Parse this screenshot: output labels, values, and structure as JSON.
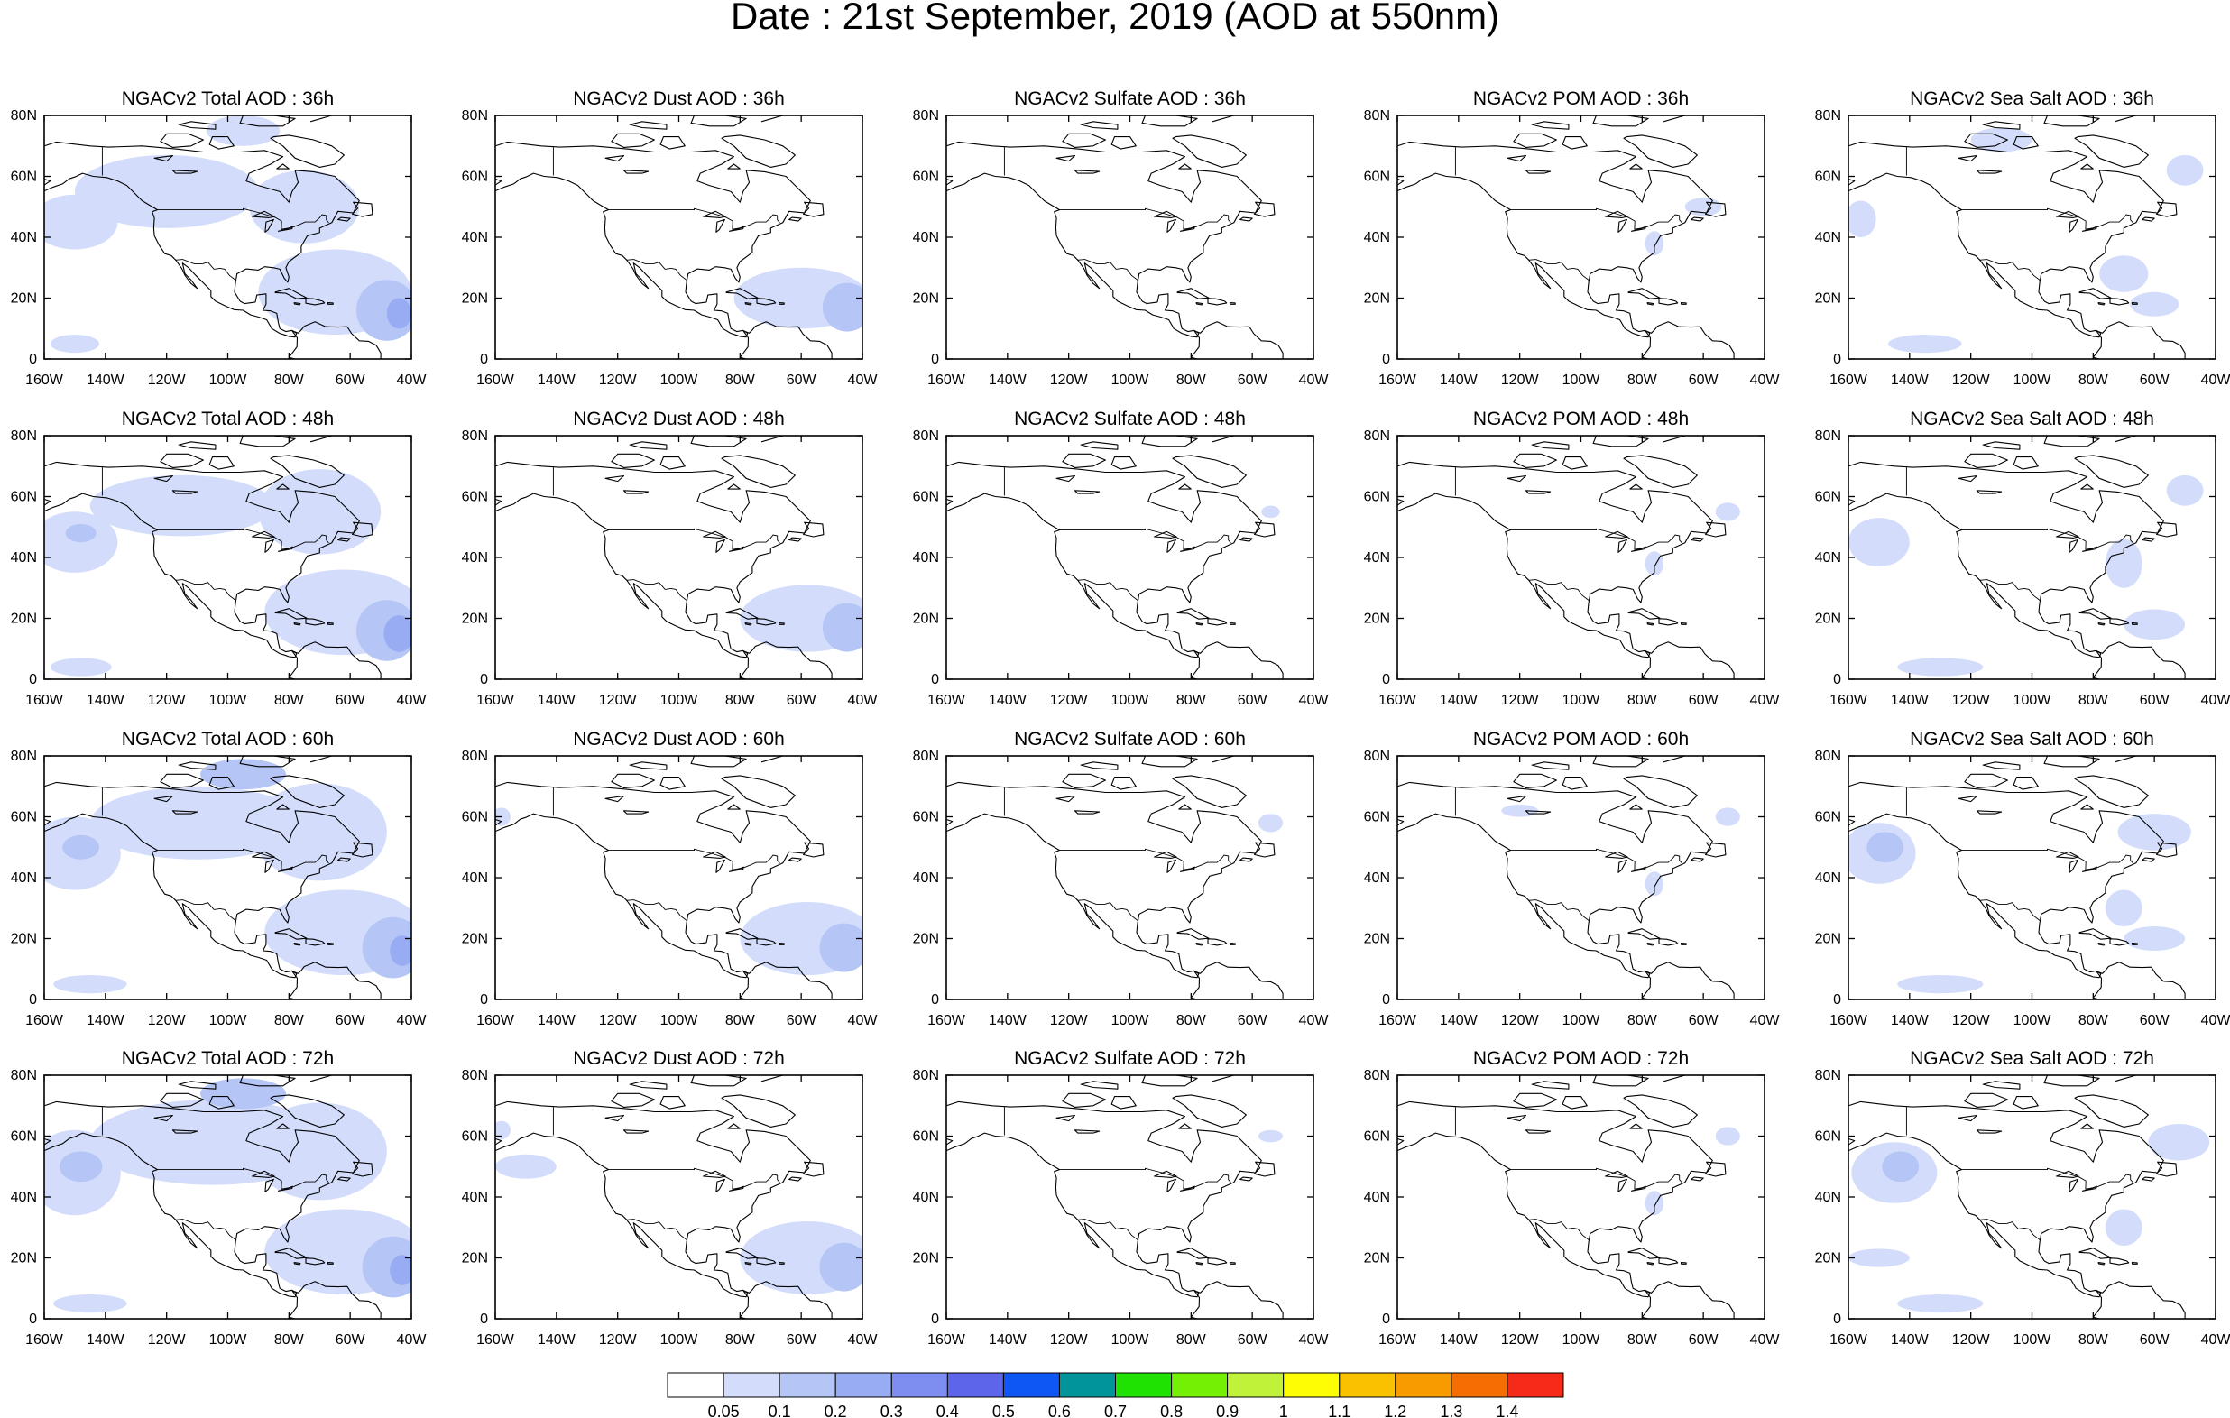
{
  "figure": {
    "title": "Date : 21st September, 2019 (AOD at 550nm)"
  },
  "panel_grid": {
    "forecast_hours": [
      "36h",
      "48h",
      "60h",
      "72h"
    ],
    "species": [
      "Total",
      "Dust",
      "Sulfate",
      "POM",
      "Sea Salt"
    ],
    "titles": [
      [
        "NGACv2 Total AOD : 36h",
        "NGACv2 Dust AOD : 36h",
        "NGACv2 Sulfate AOD : 36h",
        "NGACv2 POM AOD : 36h",
        "NGACv2 Sea Salt AOD : 36h"
      ],
      [
        "NGACv2 Total AOD : 48h",
        "NGACv2 Dust AOD : 48h",
        "NGACv2 Sulfate AOD : 48h",
        "NGACv2 POM AOD : 48h",
        "NGACv2 Sea Salt AOD : 48h"
      ],
      [
        "NGACv2 Total AOD : 60h",
        "NGACv2 Dust AOD : 60h",
        "NGACv2 Sulfate AOD : 60h",
        "NGACv2 POM AOD : 60h",
        "NGACv2 Sea Salt AOD : 60h"
      ],
      [
        "NGACv2 Total AOD : 72h",
        "NGACv2 Dust AOD : 72h",
        "NGACv2 Sulfate AOD : 72h",
        "NGACv2 POM AOD : 72h",
        "NGACv2 Sea Salt  AOD : 72h"
      ]
    ]
  },
  "map_axes": {
    "lon_range": [
      -160,
      -40
    ],
    "lat_range": [
      0,
      80
    ],
    "lon_ticks": [
      "160W",
      "140W",
      "120W",
      "100W",
      "80W",
      "60W",
      "40W"
    ],
    "lat_ticks": [
      "0",
      "20N",
      "40N",
      "60N",
      "80N"
    ]
  },
  "colorbar": {
    "labels": [
      "0.05",
      "0.1",
      "0.2",
      "0.3",
      "0.4",
      "0.5",
      "0.6",
      "0.7",
      "0.8",
      "0.9",
      "1",
      "1.1",
      "1.2",
      "1.3",
      "1.4"
    ],
    "colors": [
      "#ffffff",
      "#d3ddfb",
      "#b4c5f6",
      "#98acf3",
      "#7e8ef0",
      "#5d66ea",
      "#0f57f4",
      "#01949b",
      "#1fe102",
      "#73f003",
      "#c0f23a",
      "#fefd03",
      "#fac101",
      "#f89b01",
      "#f46e01",
      "#f52a18"
    ]
  },
  "palette": {
    "aod_light": "#d3ddfb",
    "aod_medium": "#b4c5f6",
    "aod_strong": "#98acf3",
    "aod_peak": "#7e8ef0"
  },
  "blob_levels": {
    "total": [
      [
        {
          "lon": -150,
          "lat": 45,
          "rx": 14,
          "ry": 9,
          "lv": 1
        },
        {
          "lon": -120,
          "lat": 55,
          "rx": 30,
          "ry": 12,
          "lv": 1
        },
        {
          "lon": -65,
          "lat": 22,
          "rx": 25,
          "ry": 14,
          "lv": 1
        },
        {
          "lon": -48,
          "lat": 16,
          "rx": 10,
          "ry": 10,
          "lv": 2
        },
        {
          "lon": -44,
          "lat": 15,
          "rx": 4,
          "ry": 5,
          "lv": 3
        },
        {
          "lon": -75,
          "lat": 50,
          "rx": 18,
          "ry": 12,
          "lv": 1
        },
        {
          "lon": -150,
          "lat": 5,
          "rx": 8,
          "ry": 3,
          "lv": 1
        },
        {
          "lon": -95,
          "lat": 75,
          "rx": 12,
          "ry": 5,
          "lv": 1
        }
      ],
      [
        {
          "lon": -150,
          "lat": 45,
          "rx": 14,
          "ry": 10,
          "lv": 1
        },
        {
          "lon": -148,
          "lat": 48,
          "rx": 5,
          "ry": 3,
          "lv": 2
        },
        {
          "lon": -115,
          "lat": 57,
          "rx": 30,
          "ry": 10,
          "lv": 1
        },
        {
          "lon": -62,
          "lat": 22,
          "rx": 26,
          "ry": 14,
          "lv": 1
        },
        {
          "lon": -48,
          "lat": 16,
          "rx": 10,
          "ry": 10,
          "lv": 2
        },
        {
          "lon": -44,
          "lat": 15,
          "rx": 5,
          "ry": 6,
          "lv": 3
        },
        {
          "lon": -70,
          "lat": 55,
          "rx": 20,
          "ry": 14,
          "lv": 1
        },
        {
          "lon": -148,
          "lat": 4,
          "rx": 10,
          "ry": 3,
          "lv": 1
        }
      ],
      [
        {
          "lon": -150,
          "lat": 48,
          "rx": 15,
          "ry": 12,
          "lv": 1
        },
        {
          "lon": -148,
          "lat": 50,
          "rx": 6,
          "ry": 4,
          "lv": 2
        },
        {
          "lon": -110,
          "lat": 58,
          "rx": 35,
          "ry": 12,
          "lv": 1
        },
        {
          "lon": -62,
          "lat": 22,
          "rx": 26,
          "ry": 14,
          "lv": 1
        },
        {
          "lon": -46,
          "lat": 17,
          "rx": 10,
          "ry": 10,
          "lv": 2
        },
        {
          "lon": -43,
          "lat": 16,
          "rx": 4,
          "ry": 5,
          "lv": 3
        },
        {
          "lon": -95,
          "lat": 74,
          "rx": 14,
          "ry": 5,
          "lv": 2
        },
        {
          "lon": -70,
          "lat": 55,
          "rx": 22,
          "ry": 16,
          "lv": 1
        },
        {
          "lon": -145,
          "lat": 5,
          "rx": 12,
          "ry": 3,
          "lv": 1
        }
      ],
      [
        {
          "lon": -150,
          "lat": 48,
          "rx": 15,
          "ry": 14,
          "lv": 1
        },
        {
          "lon": -148,
          "lat": 50,
          "rx": 7,
          "ry": 5,
          "lv": 2
        },
        {
          "lon": -105,
          "lat": 58,
          "rx": 40,
          "ry": 14,
          "lv": 1
        },
        {
          "lon": -62,
          "lat": 22,
          "rx": 26,
          "ry": 14,
          "lv": 1
        },
        {
          "lon": -46,
          "lat": 17,
          "rx": 10,
          "ry": 10,
          "lv": 2
        },
        {
          "lon": -43,
          "lat": 16,
          "rx": 4,
          "ry": 5,
          "lv": 3
        },
        {
          "lon": -95,
          "lat": 74,
          "rx": 14,
          "ry": 5,
          "lv": 2
        },
        {
          "lon": -70,
          "lat": 55,
          "rx": 22,
          "ry": 16,
          "lv": 1
        },
        {
          "lon": -145,
          "lat": 5,
          "rx": 12,
          "ry": 3,
          "lv": 1
        }
      ]
    ],
    "dust": [
      [
        {
          "lon": -60,
          "lat": 20,
          "rx": 22,
          "ry": 10,
          "lv": 1
        },
        {
          "lon": -45,
          "lat": 17,
          "rx": 8,
          "ry": 8,
          "lv": 2
        }
      ],
      [
        {
          "lon": -58,
          "lat": 20,
          "rx": 22,
          "ry": 11,
          "lv": 1
        },
        {
          "lon": -45,
          "lat": 17,
          "rx": 8,
          "ry": 8,
          "lv": 2
        }
      ],
      [
        {
          "lon": -58,
          "lat": 20,
          "rx": 22,
          "ry": 12,
          "lv": 1
        },
        {
          "lon": -46,
          "lat": 17,
          "rx": 8,
          "ry": 8,
          "lv": 2
        },
        {
          "lon": -158,
          "lat": 60,
          "rx": 3,
          "ry": 3,
          "lv": 1
        }
      ],
      [
        {
          "lon": -58,
          "lat": 20,
          "rx": 22,
          "ry": 12,
          "lv": 1
        },
        {
          "lon": -46,
          "lat": 17,
          "rx": 8,
          "ry": 8,
          "lv": 2
        },
        {
          "lon": -150,
          "lat": 50,
          "rx": 10,
          "ry": 4,
          "lv": 1
        },
        {
          "lon": -158,
          "lat": 62,
          "rx": 3,
          "ry": 3,
          "lv": 1
        }
      ]
    ],
    "sulfate": [
      [],
      [
        {
          "lon": -54,
          "lat": 55,
          "rx": 3,
          "ry": 2,
          "lv": 1
        }
      ],
      [
        {
          "lon": -54,
          "lat": 58,
          "rx": 4,
          "ry": 3,
          "lv": 1
        }
      ],
      [
        {
          "lon": -54,
          "lat": 60,
          "rx": 4,
          "ry": 2,
          "lv": 1
        }
      ]
    ],
    "pom": [
      [
        {
          "lon": -60,
          "lat": 50,
          "rx": 6,
          "ry": 3,
          "lv": 1
        },
        {
          "lon": -76,
          "lat": 38,
          "rx": 3,
          "ry": 4,
          "lv": 1
        }
      ],
      [
        {
          "lon": -52,
          "lat": 55,
          "rx": 4,
          "ry": 3,
          "lv": 1
        },
        {
          "lon": -76,
          "lat": 38,
          "rx": 3,
          "ry": 4,
          "lv": 1
        }
      ],
      [
        {
          "lon": -52,
          "lat": 60,
          "rx": 4,
          "ry": 3,
          "lv": 1
        },
        {
          "lon": -120,
          "lat": 62,
          "rx": 6,
          "ry": 2,
          "lv": 1
        },
        {
          "lon": -76,
          "lat": 38,
          "rx": 3,
          "ry": 4,
          "lv": 1
        }
      ],
      [
        {
          "lon": -52,
          "lat": 60,
          "rx": 4,
          "ry": 3,
          "lv": 1
        },
        {
          "lon": -76,
          "lat": 38,
          "rx": 3,
          "ry": 4,
          "lv": 1
        }
      ]
    ],
    "seasalt": [
      [
        {
          "lon": -156,
          "lat": 46,
          "rx": 5,
          "ry": 6,
          "lv": 1
        },
        {
          "lon": -70,
          "lat": 28,
          "rx": 8,
          "ry": 6,
          "lv": 1
        },
        {
          "lon": -60,
          "lat": 18,
          "rx": 8,
          "ry": 4,
          "lv": 1
        },
        {
          "lon": -135,
          "lat": 5,
          "rx": 12,
          "ry": 3,
          "lv": 1
        },
        {
          "lon": -110,
          "lat": 72,
          "rx": 10,
          "ry": 4,
          "lv": 1
        },
        {
          "lon": -50,
          "lat": 62,
          "rx": 6,
          "ry": 5,
          "lv": 1
        }
      ],
      [
        {
          "lon": -150,
          "lat": 45,
          "rx": 10,
          "ry": 8,
          "lv": 1
        },
        {
          "lon": -70,
          "lat": 38,
          "rx": 6,
          "ry": 8,
          "lv": 1
        },
        {
          "lon": -60,
          "lat": 18,
          "rx": 10,
          "ry": 5,
          "lv": 1
        },
        {
          "lon": -130,
          "lat": 4,
          "rx": 14,
          "ry": 3,
          "lv": 1
        },
        {
          "lon": -50,
          "lat": 62,
          "rx": 6,
          "ry": 5,
          "lv": 1
        }
      ],
      [
        {
          "lon": -150,
          "lat": 48,
          "rx": 12,
          "ry": 10,
          "lv": 1
        },
        {
          "lon": -148,
          "lat": 50,
          "rx": 6,
          "ry": 5,
          "lv": 2
        },
        {
          "lon": -60,
          "lat": 55,
          "rx": 12,
          "ry": 6,
          "lv": 1
        },
        {
          "lon": -70,
          "lat": 30,
          "rx": 6,
          "ry": 6,
          "lv": 1
        },
        {
          "lon": -60,
          "lat": 20,
          "rx": 10,
          "ry": 4,
          "lv": 1
        },
        {
          "lon": -130,
          "lat": 5,
          "rx": 14,
          "ry": 3,
          "lv": 1
        }
      ],
      [
        {
          "lon": -145,
          "lat": 48,
          "rx": 14,
          "ry": 10,
          "lv": 1
        },
        {
          "lon": -143,
          "lat": 50,
          "rx": 6,
          "ry": 5,
          "lv": 2
        },
        {
          "lon": -52,
          "lat": 58,
          "rx": 10,
          "ry": 6,
          "lv": 1
        },
        {
          "lon": -70,
          "lat": 30,
          "rx": 6,
          "ry": 6,
          "lv": 1
        },
        {
          "lon": -150,
          "lat": 20,
          "rx": 10,
          "ry": 3,
          "lv": 1
        },
        {
          "lon": -130,
          "lat": 5,
          "rx": 14,
          "ry": 3,
          "lv": 1
        }
      ]
    ]
  }
}
